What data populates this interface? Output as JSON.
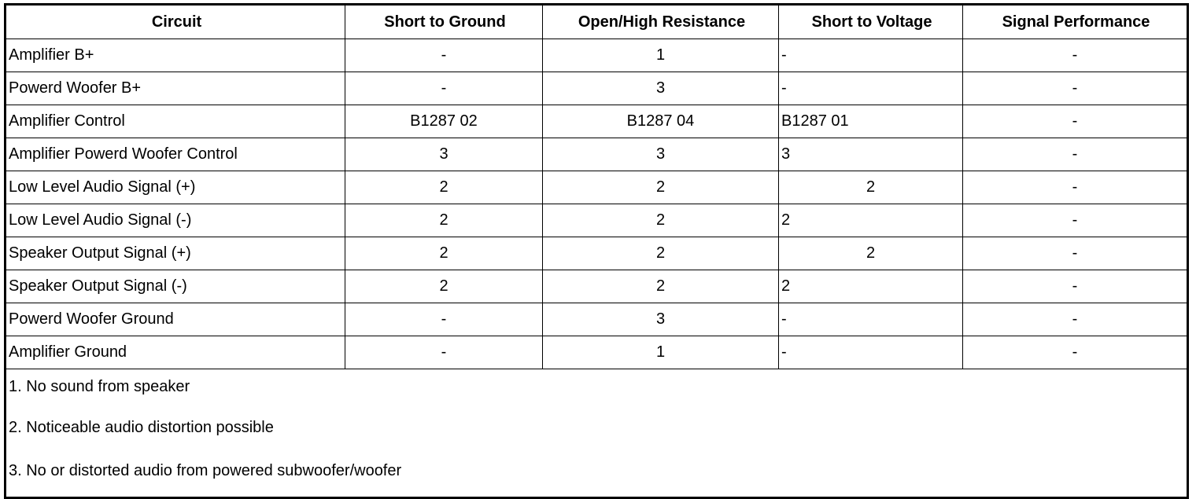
{
  "headers": [
    "Circuit",
    "Short to Ground",
    "Open/High Resistance",
    "Short to Voltage",
    "Signal Performance"
  ],
  "rows": [
    [
      "Amplifier B+",
      "-",
      "1",
      "-",
      "-"
    ],
    [
      "Powerd Woofer B+",
      "-",
      "3",
      "-",
      "-"
    ],
    [
      "Amplifier Control",
      "B1287 02",
      "B1287 04",
      "B1287 01",
      "-"
    ],
    [
      "Amplifier Powerd Woofer Control",
      "3",
      "3",
      "3",
      "-"
    ],
    [
      "Low Level Audio Signal (+)",
      "2",
      "2",
      "2",
      "-"
    ],
    [
      "Low Level Audio Signal (-)",
      "2",
      "2",
      "2",
      "-"
    ],
    [
      "Speaker Output Signal (+)",
      "2",
      "2",
      "2",
      "-"
    ],
    [
      "Speaker Output Signal (-)",
      "2",
      "2",
      "2",
      "-"
    ],
    [
      "Powerd Woofer Ground",
      "-",
      "3",
      "-",
      "-"
    ],
    [
      "Amplifier Ground",
      "-",
      "1",
      "-",
      "-"
    ]
  ],
  "notes": [
    "1. No sound from speaker",
    "2. Noticeable audio distortion possible",
    "3. No or distorted audio from powered subwoofer/woofer"
  ]
}
